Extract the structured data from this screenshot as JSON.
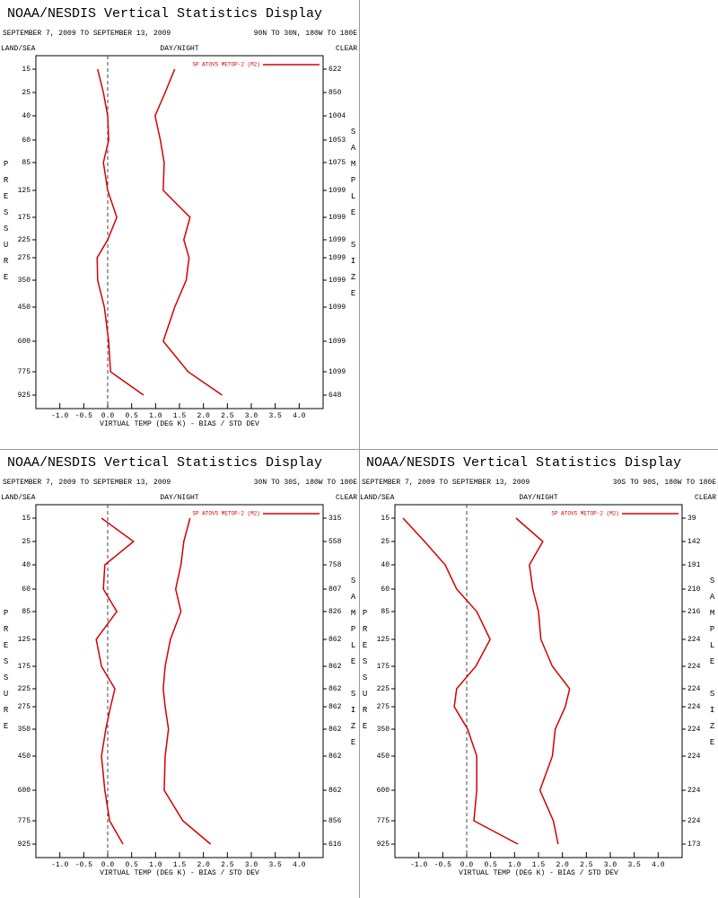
{
  "chart_data": [
    {
      "type": "line",
      "title": "NOAA/NESDIS Vertical Statistics Display",
      "date_range": "SEPTEMBER 7, 2009 TO SEPTEMBER 13, 2009",
      "region": "90N TO 30N, 180W TO 180E",
      "land_sea": "LAND/SEA",
      "day_night": "DAY/NIGHT",
      "clear": "CLEAR",
      "ylabel": "PRESSURE",
      "y2label": "SAMPLE SIZE",
      "xlabel": "VIRTUAL TEMP (DEG K) - BIAS / STD DEV",
      "categories": [
        15,
        25,
        40,
        60,
        85,
        125,
        175,
        225,
        275,
        350,
        450,
        600,
        775,
        925
      ],
      "sample_size": [
        622,
        850,
        1004,
        1053,
        1075,
        1099,
        1099,
        1099,
        1099,
        1099,
        1099,
        1099,
        1099,
        648
      ],
      "series": [
        {
          "name": "SP ATOVS METOP-2 (M2)",
          "color": "#d40000",
          "bias": [
            -0.21,
            -0.09,
            0.0,
            0.02,
            -0.09,
            0.0,
            0.19,
            0.0,
            -0.22,
            -0.21,
            -0.07,
            0.02,
            0.06,
            0.75
          ],
          "std_dev": [
            1.4,
            1.2,
            0.99,
            1.1,
            1.18,
            1.16,
            1.72,
            1.59,
            1.7,
            1.64,
            1.4,
            1.16,
            1.68,
            2.39
          ]
        }
      ],
      "xlim": [
        -1.5,
        4.5
      ],
      "xticks": [
        {
          "value": -1,
          "label": "-1.0"
        },
        {
          "value": -0.5,
          "label": "-0.5"
        },
        {
          "value": 0,
          "label": "0.0"
        },
        {
          "value": 0.5,
          "label": "0.5"
        },
        {
          "value": 1,
          "label": "1.0"
        },
        {
          "value": 1.5,
          "label": "1.5"
        },
        {
          "value": 2,
          "label": "2.0"
        },
        {
          "value": 2.5,
          "label": "2.5"
        },
        {
          "value": 3,
          "label": "3.0"
        },
        {
          "value": 3.5,
          "label": "3.5"
        },
        {
          "value": 4,
          "label": "4.0"
        }
      ],
      "zero_line": 0
    },
    {
      "type": "line",
      "title": "NOAA/NESDIS Vertical Statistics Display",
      "date_range": "SEPTEMBER 7, 2009 TO SEPTEMBER 13, 2009",
      "region": "30N TO 30S, 180W TO 180E",
      "land_sea": "LAND/SEA",
      "day_night": "DAY/NIGHT",
      "clear": "CLEAR",
      "ylabel": "PRESSURE",
      "y2label": "SAMPLE SIZE",
      "xlabel": "VIRTUAL TEMP (DEG K) - BIAS / STD DEV",
      "categories": [
        15,
        25,
        40,
        60,
        85,
        125,
        175,
        225,
        275,
        350,
        450,
        600,
        775,
        925
      ],
      "sample_size": [
        315,
        558,
        758,
        807,
        826,
        862,
        862,
        862,
        862,
        862,
        862,
        862,
        856,
        616
      ],
      "series": [
        {
          "name": "SP ATOVS METOP-2 (M2)",
          "color": "#d40000",
          "bias": [
            -0.13,
            0.54,
            -0.06,
            -0.09,
            0.19,
            -0.24,
            -0.13,
            0.15,
            0.06,
            -0.04,
            -0.13,
            -0.06,
            0.04,
            0.32
          ],
          "std_dev": [
            1.72,
            1.59,
            1.53,
            1.42,
            1.53,
            1.31,
            1.2,
            1.16,
            1.2,
            1.27,
            1.2,
            1.18,
            1.57,
            2.15
          ]
        }
      ],
      "xlim": [
        -1.5,
        4.5
      ],
      "xticks": [
        {
          "value": -1,
          "label": "-1.0"
        },
        {
          "value": -0.5,
          "label": "-0.5"
        },
        {
          "value": 0,
          "label": "0.0"
        },
        {
          "value": 0.5,
          "label": "0.5"
        },
        {
          "value": 1,
          "label": "1.0"
        },
        {
          "value": 1.5,
          "label": "1.5"
        },
        {
          "value": 2,
          "label": "2.0"
        },
        {
          "value": 2.5,
          "label": "2.5"
        },
        {
          "value": 3,
          "label": "3.0"
        },
        {
          "value": 3.5,
          "label": "3.5"
        },
        {
          "value": 4,
          "label": "4.0"
        }
      ],
      "zero_line": 0
    },
    {
      "type": "line",
      "title": "NOAA/NESDIS Vertical Statistics Display",
      "date_range": "SEPTEMBER 7, 2009 TO SEPTEMBER 13, 2009",
      "region": "30S TO 90S, 180W TO 180E",
      "land_sea": "LAND/SEA",
      "day_night": "DAY/NIGHT",
      "clear": "CLEAR",
      "ylabel": "PRESSURE",
      "y2label": "SAMPLE SIZE",
      "xlabel": "VIRTUAL TEMP (DEG K) - BIAS / STD DEV",
      "categories": [
        15,
        25,
        40,
        60,
        85,
        125,
        175,
        225,
        275,
        350,
        450,
        600,
        775,
        925
      ],
      "sample_size": [
        39,
        142,
        191,
        210,
        216,
        224,
        224,
        224,
        224,
        224,
        224,
        224,
        224,
        173
      ],
      "series": [
        {
          "name": "SP ATOVS METOP-2 (M2)",
          "color": "#d40000",
          "bias": [
            -1.33,
            -0.88,
            -0.45,
            -0.21,
            0.21,
            0.49,
            0.19,
            -0.21,
            -0.26,
            0.02,
            0.21,
            0.21,
            0.15,
            1.07
          ],
          "std_dev": [
            1.03,
            1.59,
            1.31,
            1.38,
            1.5,
            1.55,
            1.79,
            2.15,
            2.06,
            1.85,
            1.79,
            1.53,
            1.81,
            1.91
          ]
        }
      ],
      "xlim": [
        -1.5,
        4.5
      ],
      "xticks": [
        {
          "value": -1,
          "label": "-1.0"
        },
        {
          "value": -0.5,
          "label": "-0.5"
        },
        {
          "value": 0,
          "label": "0.0"
        },
        {
          "value": 0.5,
          "label": "0.5"
        },
        {
          "value": 1,
          "label": "1.0"
        },
        {
          "value": 1.5,
          "label": "1.5"
        },
        {
          "value": 2,
          "label": "2.0"
        },
        {
          "value": 2.5,
          "label": "2.5"
        },
        {
          "value": 3,
          "label": "3.0"
        },
        {
          "value": 3.5,
          "label": "3.5"
        },
        {
          "value": 4,
          "label": "4.0"
        }
      ],
      "zero_line": 0
    }
  ]
}
